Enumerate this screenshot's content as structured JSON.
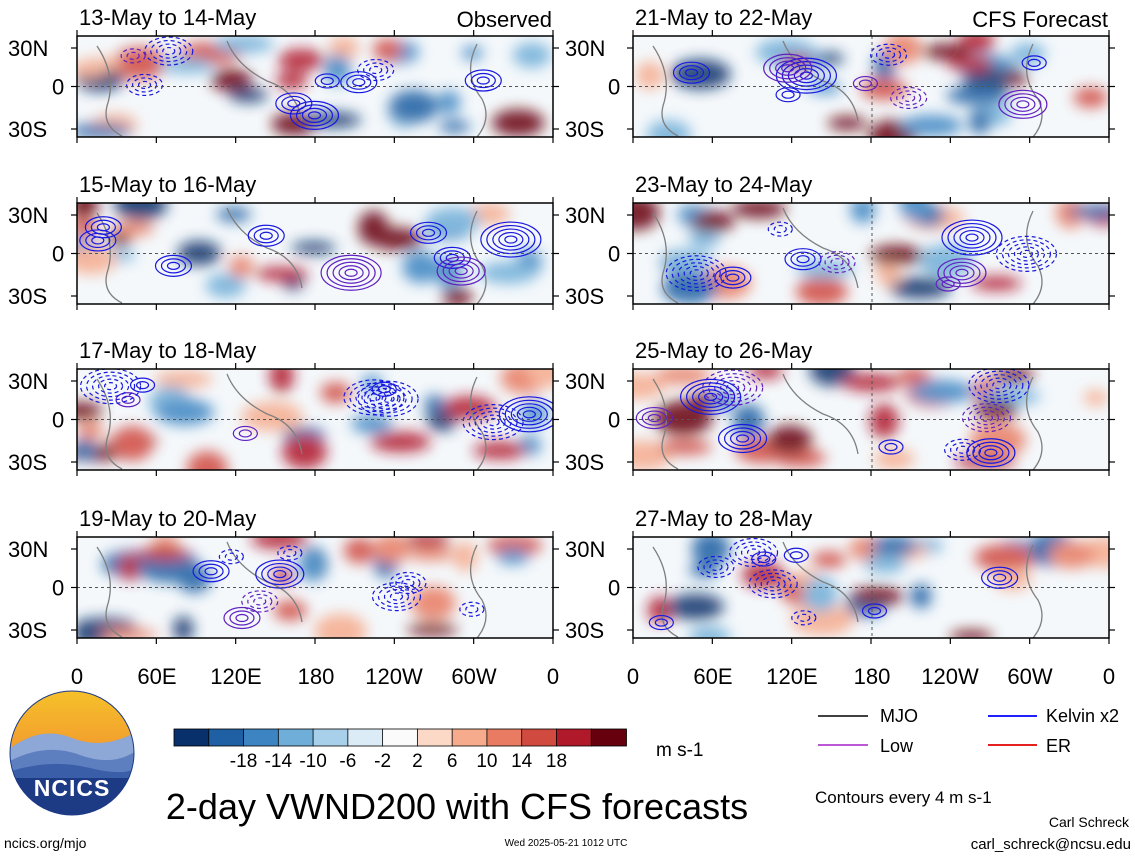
{
  "panels": [
    {
      "date_range": "13-May to 14-May",
      "tag": "Observed"
    },
    {
      "date_range": "21-May to 22-May",
      "tag": "CFS Forecast"
    },
    {
      "date_range": "15-May to 16-May",
      "tag": ""
    },
    {
      "date_range": "23-May to 24-May",
      "tag": ""
    },
    {
      "date_range": "17-May to 18-May",
      "tag": ""
    },
    {
      "date_range": "25-May to 26-May",
      "tag": ""
    },
    {
      "date_range": "19-May to 20-May",
      "tag": ""
    },
    {
      "date_range": "27-May to 28-May",
      "tag": ""
    }
  ],
  "lat_labels": [
    "30N",
    "0",
    "30S"
  ],
  "lon_labels": [
    "0",
    "60E",
    "120E",
    "180",
    "120W",
    "60W",
    "0"
  ],
  "colorbar": {
    "ticks": [
      "-18",
      "-14",
      "-10",
      "-6",
      "-2",
      "2",
      "6",
      "10",
      "14",
      "18"
    ],
    "unit": "m s-1",
    "colors": [
      "#08306b",
      "#1f5fa3",
      "#3d85c2",
      "#6faed8",
      "#a9d0ea",
      "#dcecf6",
      "#fbfbfb",
      "#fcd8c6",
      "#f6ab8d",
      "#e87b62",
      "#d04a3f",
      "#b0192a",
      "#67000d"
    ]
  },
  "legend": {
    "items": [
      {
        "label": "MJO",
        "color": "#000000"
      },
      {
        "label": "Kelvin x2",
        "color": "#0000ff"
      },
      {
        "label": "Low",
        "color": "#b040d0"
      },
      {
        "label": "ER",
        "color": "#e00000"
      }
    ],
    "contour_note": "Contours every 4 m s-1"
  },
  "main_title": "2-day VWND200 with CFS forecasts",
  "logo_text": "NCICS",
  "footer": {
    "url": "ncics.org/mjo",
    "timestamp": "Wed 2025-05-21 1012 UTC",
    "author": "Carl Schreck",
    "email": "carl_schreck@ncsu.edu"
  }
}
